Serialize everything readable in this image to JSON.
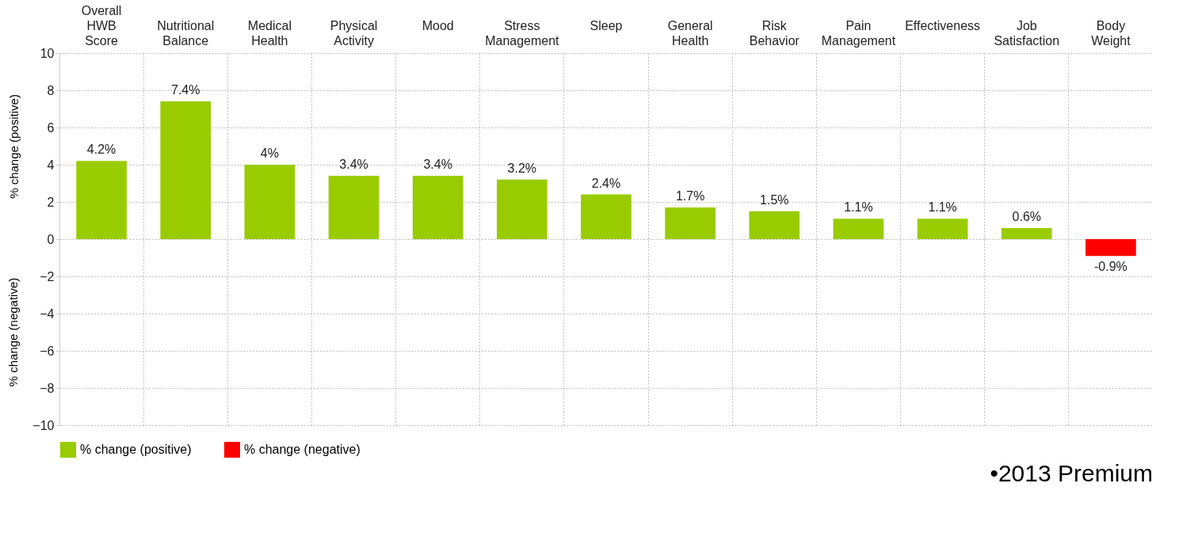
{
  "chart_data": {
    "type": "bar",
    "categories": [
      "Overall HWB Score",
      "Nutritional Balance",
      "Medical Health",
      "Physical Activity",
      "Mood",
      "Stress Management",
      "Sleep",
      "General Health",
      "Risk Behavior",
      "Pain Management",
      "Effectiveness",
      "Job Satisfaction",
      "Body Weight"
    ],
    "series": [
      {
        "name": "% change (positive)",
        "color": "#99cc00",
        "values": [
          4.2,
          7.4,
          4,
          3.4,
          3.4,
          3.2,
          2.4,
          1.7,
          1.5,
          1.1,
          1.1,
          0.6,
          null
        ],
        "value_labels": [
          "4.2%",
          "7.4%",
          "4%",
          "3.4%",
          "3.4%",
          "3.2%",
          "2.4%",
          "1.7%",
          "1.5%",
          "1.1%",
          "1.1%",
          "0.6%",
          null
        ]
      },
      {
        "name": "% change (negative)",
        "color": "#ff0000",
        "values": [
          null,
          null,
          null,
          null,
          null,
          null,
          null,
          null,
          null,
          null,
          null,
          null,
          -0.9
        ],
        "value_labels": [
          null,
          null,
          null,
          null,
          null,
          null,
          null,
          null,
          null,
          null,
          null,
          null,
          "-0.9%"
        ]
      }
    ],
    "ylabel": "% change (positive)",
    "annotations": [
      "% change (negative)",
      "•2013 Premium"
    ],
    "ylim": [
      -10,
      10
    ],
    "yticks": [
      -10,
      -8,
      -6,
      -4,
      -2,
      0,
      2,
      4,
      6,
      8,
      10
    ],
    "grid": true,
    "legend": "bottom"
  }
}
